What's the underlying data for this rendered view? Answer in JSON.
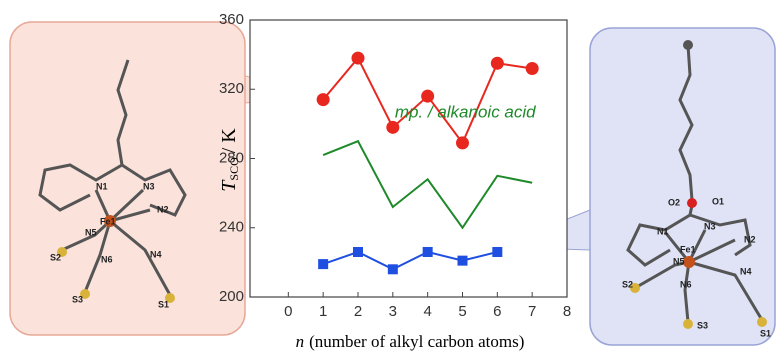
{
  "chart_data": {
    "type": "line",
    "x_label": {
      "symbol": "n",
      "text": "(number of alkyl carbon atoms)"
    },
    "y_label": {
      "symbol": "T",
      "subscript": "SCO",
      "unit": "/ K"
    },
    "xlim": [
      -1.1,
      8
    ],
    "xticks": [
      0,
      1,
      2,
      3,
      4,
      5,
      6,
      7,
      8
    ],
    "ylim": [
      200,
      360
    ],
    "yticks": [
      200,
      240,
      280,
      320,
      360
    ],
    "series": [
      {
        "color": "#e8271e",
        "marker": "circle",
        "x": [
          1,
          2,
          3,
          4,
          5,
          6,
          7
        ],
        "values": [
          314,
          338,
          298,
          316,
          289,
          335,
          332
        ]
      },
      {
        "name": "mp. / alkanoic acid",
        "color": "#1e8a2a",
        "x": [
          1,
          2,
          3,
          4,
          5,
          6,
          7
        ],
        "values": [
          282,
          290,
          252,
          268,
          240,
          270,
          266
        ]
      },
      {
        "color": "#1f4fe0",
        "marker": "square",
        "x": [
          1,
          2,
          3,
          4,
          5,
          6
        ],
        "values": [
          219,
          226,
          216,
          226,
          221,
          226
        ]
      }
    ]
  },
  "left_structure": {
    "atom_labels": [
      "N1",
      "N3",
      "N2",
      "Fe1",
      "N5",
      "N6",
      "N4",
      "S2",
      "S3",
      "S1"
    ]
  },
  "right_structure": {
    "atom_labels": [
      "O2",
      "O1",
      "N1",
      "N3",
      "Fe1",
      "N2",
      "N5",
      "N4",
      "S2",
      "N6",
      "S3",
      "S1"
    ]
  }
}
